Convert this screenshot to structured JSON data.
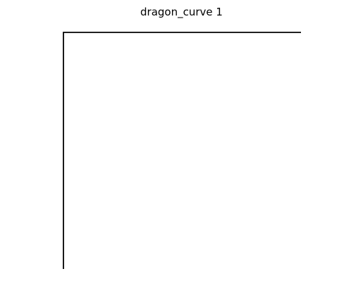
{
  "figure": {
    "title": "dragon_curve 1"
  },
  "curve": {
    "name": "dragon_curve",
    "iteration": 1,
    "points": [
      [
        0,
        0
      ],
      [
        0,
        1
      ],
      [
        1,
        1
      ]
    ],
    "line_color": "#000000"
  }
}
